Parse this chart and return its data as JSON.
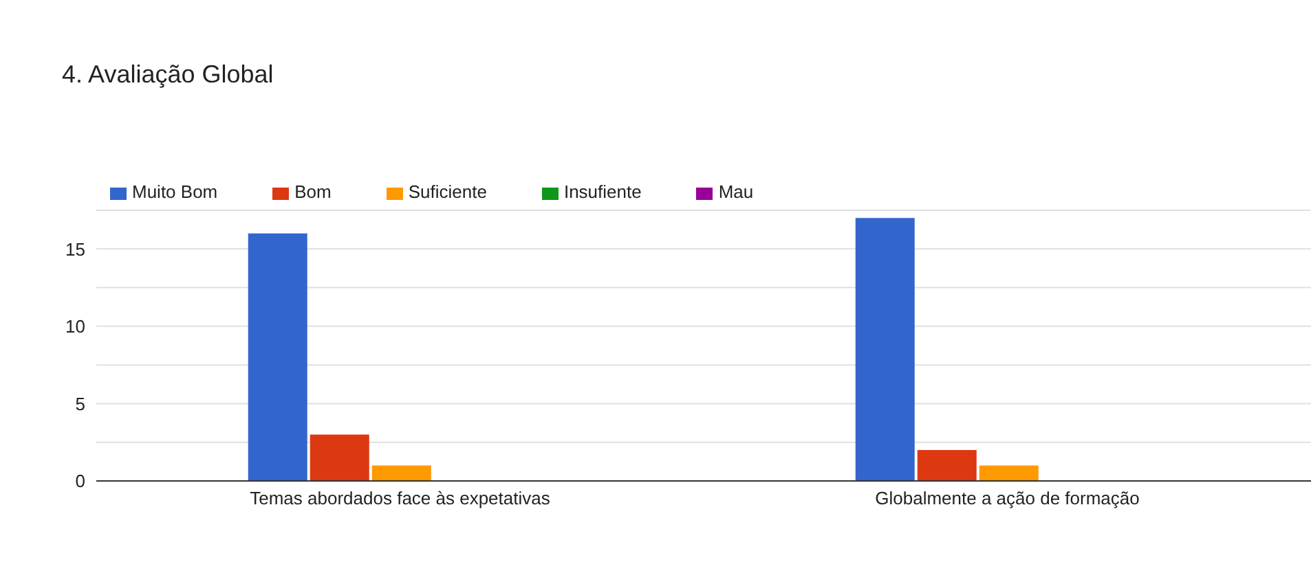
{
  "chart_data": {
    "type": "bar",
    "title": "4. Avaliação Global",
    "categories": [
      "Temas abordados face às expetativas",
      "Globalmente a ação de formação"
    ],
    "series": [
      {
        "name": "Muito Bom",
        "color": "#3366cc",
        "values": [
          16,
          17
        ]
      },
      {
        "name": "Bom",
        "color": "#dc3912",
        "values": [
          3,
          2
        ]
      },
      {
        "name": "Suficiente",
        "color": "#ff9900",
        "values": [
          1,
          1
        ]
      },
      {
        "name": "Insufiente",
        "color": "#109618",
        "values": [
          0,
          0
        ]
      },
      {
        "name": "Mau",
        "color": "#990099",
        "values": [
          0,
          0
        ]
      }
    ],
    "ylim": [
      0,
      17.5
    ],
    "yticks": [
      0,
      {
        "value": 2.5,
        "label": null
      },
      5,
      {
        "value": 7.5,
        "label": null
      },
      10,
      {
        "value": 12.5,
        "label": null
      },
      15,
      {
        "value": 17.5,
        "label": null
      }
    ],
    "grid": "y",
    "legend": "top left"
  }
}
